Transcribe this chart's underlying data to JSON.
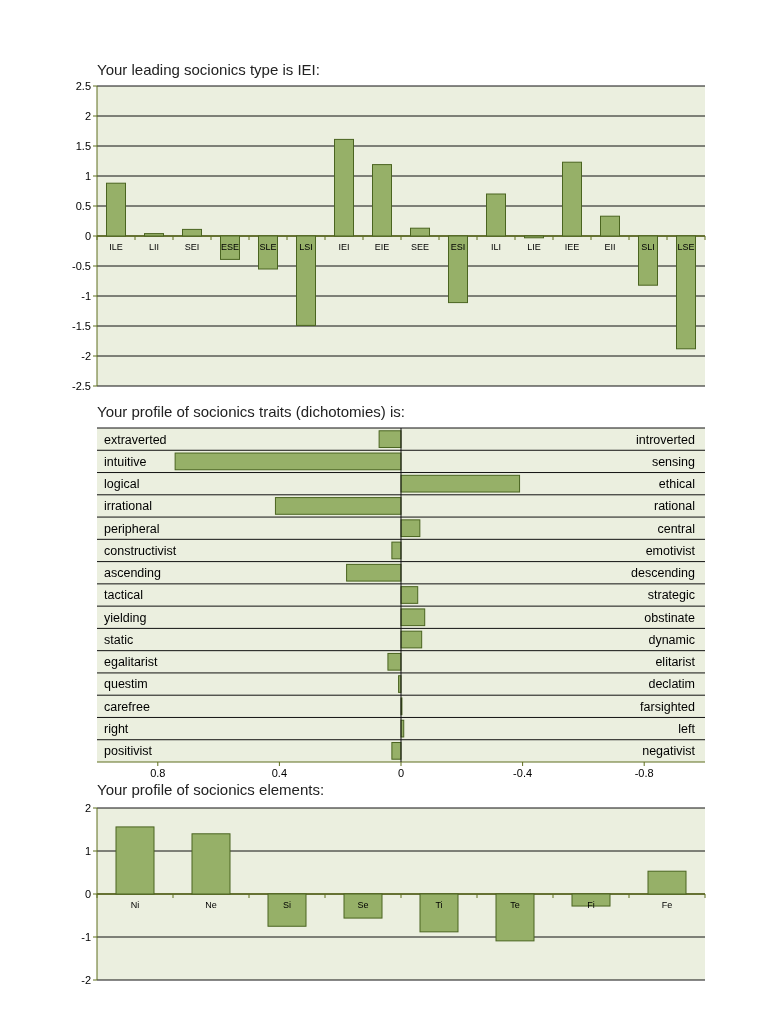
{
  "chart_data": [
    {
      "type": "bar",
      "title": "Your leading socionics type is IEI:",
      "categories": [
        "ILE",
        "LII",
        "SEI",
        "ESE",
        "SLE",
        "LSI",
        "IEI",
        "EIE",
        "SEE",
        "ESI",
        "ILI",
        "LIE",
        "IEE",
        "EII",
        "SLI",
        "LSE"
      ],
      "values": [
        0.88,
        0.04,
        0.11,
        -0.39,
        -0.55,
        -1.49,
        1.61,
        1.19,
        0.13,
        -1.11,
        0.7,
        -0.03,
        1.23,
        0.33,
        -0.82,
        -1.88
      ],
      "color": "#96b068",
      "ylim": [
        -2.5,
        2.5
      ],
      "yticks": [
        -2.5,
        -2,
        -1.5,
        -1,
        -0.5,
        0,
        0.5,
        1,
        1.5,
        2,
        2.5
      ],
      "grid": "y"
    },
    {
      "type": "bar",
      "orientation": "horizontal",
      "title": "Your profile of socionics traits (dichotomies) is:",
      "categories": [
        "extraverted",
        "intuitive",
        "logical",
        "irrational",
        "peripheral",
        "constructivist",
        "ascending",
        "tactical",
        "yielding",
        "static",
        "egalitarist",
        "questim",
        "carefree",
        "right",
        "positivist"
      ],
      "y2_categories": [
        "introverted",
        "sensing",
        "ethical",
        "rational",
        "central",
        "emotivist",
        "descending",
        "strategic",
        "obstinate",
        "dynamic",
        "elitarist",
        "declatim",
        "farsighted",
        "left",
        "negativist"
      ],
      "values": [
        0.072,
        0.743,
        -0.39,
        0.413,
        -0.062,
        0.03,
        0.179,
        -0.055,
        -0.078,
        -0.068,
        0.043,
        0.008,
        -0.003,
        -0.009,
        0.03
      ],
      "color": "#96b068",
      "xlim": [
        1,
        -1
      ],
      "xticks": [
        0.8,
        0.4,
        0,
        -0.4,
        -0.8
      ]
    },
    {
      "type": "bar",
      "title": "Your profile of socionics elements:",
      "categories": [
        "Ni",
        "Ne",
        "Si",
        "Se",
        "Ti",
        "Te",
        "Fi",
        "Fe"
      ],
      "values": [
        1.56,
        1.4,
        -0.75,
        -0.56,
        -0.88,
        -1.09,
        -0.28,
        0.53
      ],
      "color": "#96b068",
      "ylim": [
        -2,
        2
      ],
      "yticks": [
        -2,
        -1,
        0,
        1,
        2
      ],
      "grid": "y"
    }
  ]
}
